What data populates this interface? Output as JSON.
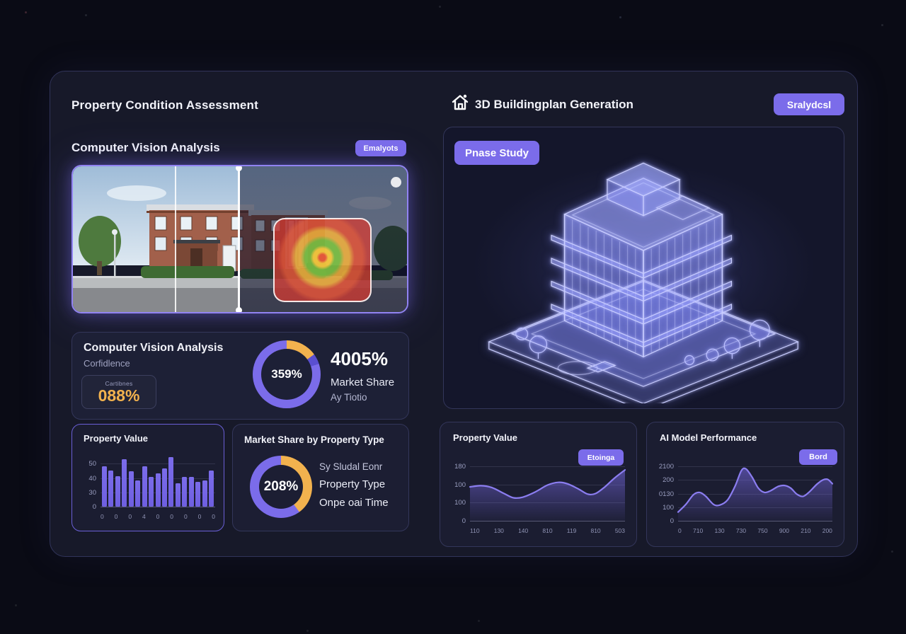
{
  "header": {
    "left_title": "Property Condition Assessment"
  },
  "vision_section": {
    "title": "Computer Vision Analysis",
    "analyze_button": "Emalyots"
  },
  "vision_card": {
    "title": "Computer Vision Analysis",
    "subtitle": "Corfidlence",
    "chip_label": "Cartibnes",
    "chip_value": "088%",
    "donut_center": "359%",
    "stat_value": "4005%",
    "stat_line1": "Market Share",
    "stat_line2": "Ay Tiotio"
  },
  "bar_card": {
    "title": "Property Value"
  },
  "market_card": {
    "title": "Market Share by Property Type",
    "donut_center": "208%",
    "legend": [
      "Sy Sludal Eonr",
      "Property Type",
      "Onpe oai Time"
    ]
  },
  "right_section": {
    "title": "3D Buildingplan Generation",
    "action_button": "Sralydcsl",
    "case_badge": "Pnase Study"
  },
  "area_card1": {
    "title": "Property Value",
    "badge": "Etoinga"
  },
  "area_card2": {
    "title": "AI Model Performance",
    "badge": "Bord"
  },
  "colors": {
    "accent": "#7b6cea",
    "orange": "#f2b24e",
    "line": "#8b7df0",
    "chip_value": "#f2b24e",
    "wireframe": "#c9cdff"
  },
  "chart_data": [
    {
      "id": "condition-bars",
      "type": "bar",
      "title": "Property Value",
      "values": [
        48,
        43,
        36,
        56,
        42,
        31,
        48,
        35,
        39,
        45,
        59,
        28,
        35,
        35,
        29,
        31,
        43
      ],
      "y_ticks": [
        "50",
        "40",
        "30",
        "0"
      ],
      "x_ticks": [
        "0",
        "0",
        "0",
        "4",
        "0",
        "0",
        "0",
        "0",
        "0"
      ],
      "ylim": [
        0,
        62
      ],
      "color": "#7b6cea",
      "grid": true
    },
    {
      "id": "vision-donut",
      "type": "donut",
      "center_label": "359%",
      "segments": [
        {
          "name": "orange",
          "color": "#f2b24e",
          "pct": 15
        },
        {
          "name": "dark-purple",
          "color": "#5a4fd0",
          "pct": 5
        },
        {
          "name": "purple",
          "color": "#7b6cea",
          "pct": 80
        }
      ]
    },
    {
      "id": "market-donut",
      "type": "donut",
      "center_label": "208%",
      "segments": [
        {
          "name": "orange",
          "color": "#f2b24e",
          "pct": 40
        },
        {
          "name": "purple",
          "color": "#7b6cea",
          "pct": 60
        }
      ]
    },
    {
      "id": "value-area",
      "type": "area",
      "title": "Property Value",
      "ylim": [
        0,
        180
      ],
      "y_ticks": [
        "180",
        "100",
        "100",
        "0"
      ],
      "x_ticks": [
        "110",
        "130",
        "140",
        "810",
        "119",
        "810",
        "503"
      ],
      "points": [
        [
          0,
          112
        ],
        [
          7,
          116
        ],
        [
          14,
          110
        ],
        [
          22,
          90
        ],
        [
          28,
          76
        ],
        [
          34,
          78
        ],
        [
          42,
          95
        ],
        [
          50,
          118
        ],
        [
          57,
          127
        ],
        [
          63,
          122
        ],
        [
          70,
          105
        ],
        [
          76,
          88
        ],
        [
          81,
          90
        ],
        [
          87,
          112
        ],
        [
          93,
          140
        ],
        [
          100,
          168
        ]
      ],
      "color": "#8b7df0",
      "grid": true,
      "legend_position": "none"
    },
    {
      "id": "perf-area",
      "type": "area",
      "title": "AI Model Performance",
      "ylim": [
        0,
        250
      ],
      "y_ticks": [
        "2100",
        "200",
        "0130",
        "100",
        "0"
      ],
      "x_ticks": [
        "0",
        "710",
        "130",
        "730",
        "750",
        "900",
        "210",
        "200"
      ],
      "points": [
        [
          0,
          40
        ],
        [
          5,
          75
        ],
        [
          10,
          120
        ],
        [
          14,
          130
        ],
        [
          18,
          112
        ],
        [
          23,
          75
        ],
        [
          27,
          72
        ],
        [
          32,
          95
        ],
        [
          37,
          160
        ],
        [
          41,
          230
        ],
        [
          44,
          238
        ],
        [
          48,
          200
        ],
        [
          52,
          150
        ],
        [
          56,
          130
        ],
        [
          60,
          138
        ],
        [
          65,
          158
        ],
        [
          69,
          162
        ],
        [
          73,
          150
        ],
        [
          77,
          122
        ],
        [
          81,
          112
        ],
        [
          85,
          132
        ],
        [
          90,
          168
        ],
        [
          94,
          188
        ],
        [
          97,
          190
        ],
        [
          100,
          170
        ]
      ],
      "color": "#8b7df0",
      "grid": true,
      "legend_position": "none"
    }
  ]
}
